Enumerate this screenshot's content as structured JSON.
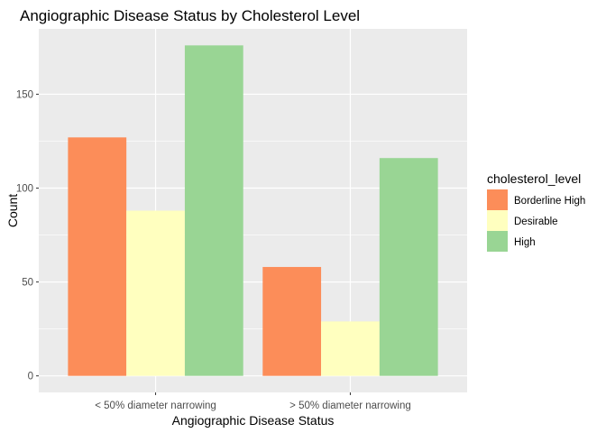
{
  "chart_data": {
    "type": "bar",
    "title": "Angiographic Disease Status by Cholesterol Level",
    "xlabel": "Angiographic Disease Status",
    "ylabel": "Count",
    "categories": [
      "< 50% diameter narrowing",
      "> 50% diameter narrowing"
    ],
    "series": [
      {
        "name": "Borderline High",
        "values": [
          127,
          58
        ],
        "color": "#fc8d59"
      },
      {
        "name": "Desirable",
        "values": [
          88,
          29
        ],
        "color": "#ffffbf"
      },
      {
        "name": "High",
        "values": [
          176,
          116
        ],
        "color": "#99d594"
      }
    ],
    "yticks": [
      0,
      50,
      100,
      150
    ],
    "ylim": [
      -8.8,
      184.8
    ],
    "grid": true,
    "legend": {
      "title": "cholesterol_level",
      "position": "right"
    },
    "panel_background": "#ebebeb"
  }
}
